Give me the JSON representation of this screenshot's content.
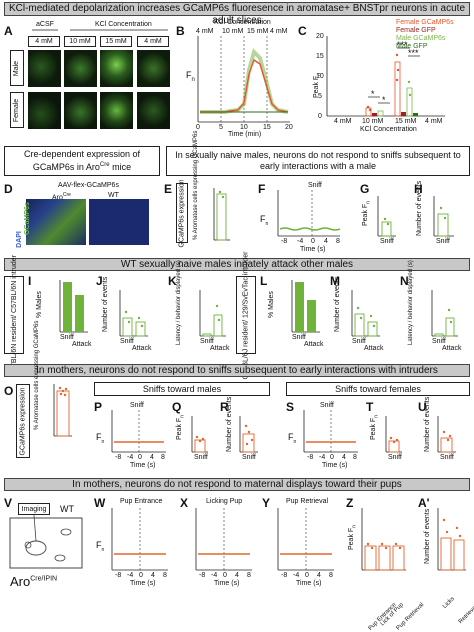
{
  "title": "KCl-mediated depolarization increases GCaMP6s fluoresence in aromatase+ BNSTpr neurons in acute adult slices",
  "panel_letters": {
    "A": "A",
    "B": "B",
    "C": "C",
    "D": "D",
    "E": "E",
    "F": "F",
    "G": "G",
    "H": "H",
    "I": "I",
    "J": "J",
    "K": "K",
    "L": "L",
    "M": "M",
    "N": "N",
    "O": "O",
    "P": "P",
    "Q": "Q",
    "R": "R",
    "S": "S",
    "T": "T",
    "U": "U",
    "V": "V",
    "W": "W",
    "X": "X",
    "Y": "Y",
    "Z": "Z",
    "A2": "A'"
  },
  "panelA": {
    "acsf": "aCSF",
    "kcl": "KCl Concentration",
    "cols": [
      "4 mM",
      "10 mM",
      "15 mM",
      "4 mM"
    ],
    "rows": [
      "Male",
      "Female"
    ]
  },
  "panelB": {
    "header": "KCl Concentration",
    "conc": [
      "4 mM",
      "10 mM",
      "15 mM",
      "4 mM"
    ],
    "ylabel": "F",
    "ysub": "n",
    "xlabel": "Time (min)",
    "xticks": [
      "0",
      "5",
      "10",
      "15",
      "20"
    ]
  },
  "panelC": {
    "legend": [
      "Female GCaMP6s",
      "Female GFP",
      "Male GCaMP6s",
      "Male GFP"
    ],
    "legend_colors": [
      "#e8552a",
      "#9c2222",
      "#7ab648",
      "#2e6e1a"
    ],
    "ylabel": "Peak F",
    "ysub": "n",
    "yticks": [
      "0",
      "5",
      "10",
      "15",
      "20"
    ],
    "xlabel": "KCl Concentration",
    "cats": [
      "4 mM",
      "10 mM",
      "15 mM",
      "4 mM"
    ],
    "sig": [
      "*",
      "*",
      "***",
      "***"
    ]
  },
  "box1": "Cre-dependent expression of GCaMP6s in Aro",
  "box1_sup": "Cre",
  "box1_end": " mice",
  "box2": "In sexually naive males, neurons do not respond to sniffs subsequent to early interactions with a male",
  "panelD": {
    "title": "AAV-flex-GCaMP6s",
    "left": "Aro",
    "left_sup": "Cre",
    "right": "WT",
    "side": "GCaMP6s",
    "side2": "DAPI"
  },
  "panelE": {
    "ylabel": "% Aromatase cells expressing GCaMP6s",
    "yticks": [
      "0",
      "50",
      "100"
    ],
    "value": 90
  },
  "boxE": "GCaMP6s expression",
  "panelF": {
    "sniff": "Sniff",
    "ylabel": "F",
    "ysub": "n",
    "xlabel": "Time (s)",
    "xticks": [
      "-8",
      "-4",
      "0",
      "4",
      "8"
    ],
    "yticks": [
      "1.0",
      "1.5",
      "2.0"
    ]
  },
  "panelG": {
    "ylabel": "Peak F",
    "ysub": "n",
    "yticks": [
      "0",
      "2",
      "4",
      "6"
    ],
    "cat": "Sniff"
  },
  "panelH": {
    "ylabel": "Number of events",
    "yticks": [
      "0",
      "10",
      "20"
    ],
    "cat": "Sniff"
  },
  "hdr1": "WT sexually naive males innately attack other males",
  "boxI": "C57BL/6N resident/ C57BL/6N intruder",
  "boxL": "C57BL/6J resident/ 129/SvEvTac intruder",
  "panelI": {
    "ylabel": "% Males",
    "yticks": [
      "0%",
      "20%",
      "40%",
      "60%",
      "80%",
      "100%"
    ],
    "cats": [
      "Sniff",
      "Attack"
    ],
    "values": [
      100,
      75
    ]
  },
  "panelJ": {
    "ylabel": "Number of events",
    "yticks": [
      "0",
      "10",
      "20",
      "30"
    ],
    "cats": [
      "Sniff",
      "Attack"
    ]
  },
  "panelK": {
    "ylabel": "Latency / behavior displayed (s)",
    "yticks": [
      "0",
      "200",
      "400",
      "600"
    ],
    "cats": [
      "Sniff",
      "Attack"
    ]
  },
  "panelL": {
    "ylabel": "% Males",
    "yticks": [
      "0%",
      "20%",
      "40%",
      "60%",
      "80%",
      "100%"
    ],
    "cats": [
      "Sniff",
      "Attack"
    ],
    "values": [
      100,
      65
    ]
  },
  "panelM": {
    "ylabel": "Number of events",
    "yticks": [
      "0",
      "10",
      "20",
      "30"
    ],
    "cats": [
      "Sniff",
      "Attack"
    ]
  },
  "panelN": {
    "ylabel": "Latency / behavior displayed (s)",
    "yticks": [
      "0",
      "200",
      "400",
      "600"
    ],
    "cats": [
      "Sniff",
      "Attack"
    ]
  },
  "hdr2": "In mothers, neurons do not respond to sniffs subsequent to early interactions with intruders",
  "subhdr_males": "Sniffs toward males",
  "subhdr_females": "Sniffs toward females",
  "boxO": "GCaMP6s expression",
  "panelO": {
    "ylabel": "% Aromatase cells expressing GCaMP6s",
    "yticks": [
      "0",
      "50",
      "100"
    ],
    "value": 85
  },
  "panelP": {
    "sniff": "Sniff",
    "ylabel": "F",
    "ysub": "n",
    "xlabel": "Time (s)",
    "xticks": [
      "-8",
      "-4",
      "0",
      "4",
      "8"
    ],
    "yticks": [
      "1.0",
      "1.5",
      "2.0"
    ]
  },
  "panelQ": {
    "ylabel": "Peak F",
    "ysub": "n",
    "yticks": [
      "0",
      "2",
      "4",
      "6"
    ],
    "cat": "Sniff"
  },
  "panelR": {
    "ylabel": "Number of events",
    "yticks": [
      "0",
      "10",
      "20",
      "30"
    ],
    "cat": "Sniff"
  },
  "panelS": {
    "sniff": "Sniff",
    "ylabel": "F",
    "ysub": "n",
    "xlabel": "Time (s)",
    "xticks": [
      "-8",
      "-4",
      "0",
      "4",
      "8"
    ],
    "yticks": [
      "1.0",
      "1.5",
      "2.0"
    ]
  },
  "panelT": {
    "ylabel": "Peak F",
    "ysub": "n",
    "yticks": [
      "0",
      "2",
      "4",
      "6"
    ],
    "cat": "Sniff"
  },
  "panelU": {
    "ylabel": "Number of events",
    "yticks": [
      "0",
      "10",
      "20",
      "30"
    ],
    "cat": "Sniff"
  },
  "hdr3": "In mothers, neurons do not respond to maternal displays toward their pups",
  "panelV": {
    "imaging": "Imaging",
    "wt": "WT",
    "aro": "Aro",
    "aro_sup": "Cre/IPIN"
  },
  "panelW": {
    "title": "Pup Entrance",
    "ylabel": "F",
    "ysub": "n",
    "xlabel": "Time (s)",
    "xticks": [
      "-8",
      "-4",
      "0",
      "4",
      "8"
    ],
    "yticks": [
      "1.0",
      "1.5",
      "2.0"
    ]
  },
  "panelX": {
    "title": "Licking Pup",
    "xlabel": "Time (s)",
    "xticks": [
      "-8",
      "-4",
      "0",
      "4",
      "8"
    ],
    "yticks": [
      "1.0",
      "1.5",
      "2.0"
    ]
  },
  "panelY": {
    "title": "Pup Retrieval",
    "xlabel": "Time (s)",
    "xticks": [
      "-8",
      "-4",
      "0",
      "4",
      "8"
    ],
    "yticks": [
      "1.0",
      "1.5",
      "2.0"
    ]
  },
  "panelZ": {
    "ylabel": "Peak F",
    "ysub": "n",
    "yticks": [
      "0",
      "2",
      "4",
      "6"
    ],
    "cats": [
      "Pup Entrance",
      "Lick of Pup",
      "Pup Retrieval"
    ]
  },
  "panelA2": {
    "ylabel": "Number of events",
    "yticks": [
      "0",
      "5",
      "10",
      "15"
    ],
    "cats": [
      "Licks",
      "Retrievals"
    ]
  },
  "colors": {
    "green": "#6fb33a",
    "orange": "#e0662e",
    "header_bg": "#c8c8c8"
  }
}
